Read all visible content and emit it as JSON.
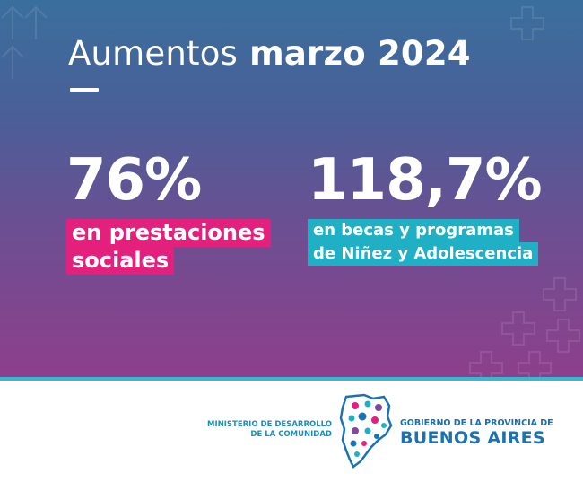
{
  "header": {
    "title_light": "Aumentos",
    "title_bold": "marzo 2024"
  },
  "stats": [
    {
      "value": "76%",
      "label_lines": [
        "en prestaciones",
        "sociales"
      ],
      "tag_color": "#e3207b"
    },
    {
      "value": "118,7%",
      "label_lines": [
        "en becas y programas",
        "de Niñez y Adolescencia"
      ],
      "tag_color": "#1fb0c5"
    }
  ],
  "footer": {
    "ministry_lines": [
      "MINISTERIO DE DESARROLLO",
      "DE LA COMUNIDAD"
    ],
    "government_line": "GOBIERNO DE LA PROVINCIA DE",
    "province_name": "BUENOS AIRES"
  },
  "colors": {
    "gradient_top": "#3a6f9c",
    "gradient_bottom": "#8e3f8c",
    "accent_cyan": "#34b9d3",
    "brand_blue": "#1a73b0"
  }
}
